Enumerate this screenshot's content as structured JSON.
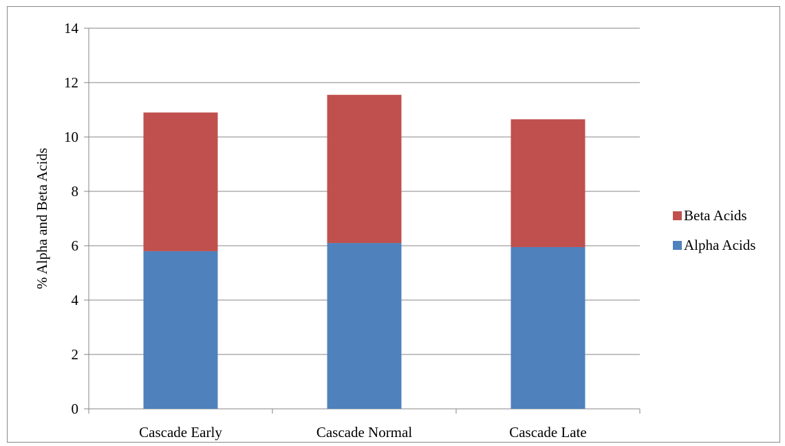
{
  "chart_data": {
    "type": "bar",
    "stacked": true,
    "categories": [
      "Cascade Early",
      "Cascade Normal",
      "Cascade Late"
    ],
    "series": [
      {
        "name": "Alpha Acids",
        "values": [
          5.8,
          6.1,
          5.95
        ],
        "color": "#4F81BD"
      },
      {
        "name": "Beta Acids",
        "values": [
          5.1,
          5.45,
          4.7
        ],
        "color": "#C0504D"
      }
    ],
    "title": "",
    "xlabel": "",
    "ylabel": "% Alpha and Beta Acids",
    "ylim": [
      0,
      14
    ],
    "yticks": [
      "0",
      "2",
      "4",
      "6",
      "8",
      "10",
      "12",
      "14"
    ],
    "grid": true,
    "legend": {
      "position": "right",
      "entries": [
        "Beta Acids",
        "Alpha Acids"
      ]
    }
  }
}
